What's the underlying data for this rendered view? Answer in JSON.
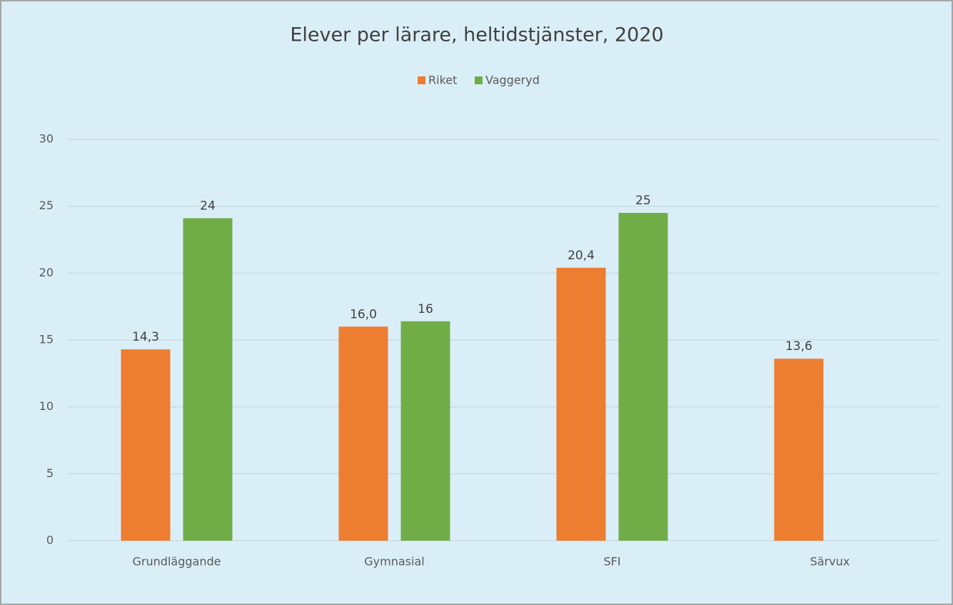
{
  "chart_data": {
    "type": "bar",
    "title": "Elever per lärare, heltidstjänster, 2020",
    "categories": [
      "Grundläggande",
      "Gymnasial",
      "SFI",
      "Särvux"
    ],
    "series": [
      {
        "name": "Riket",
        "color": "#ed7d31",
        "values": [
          14.3,
          16.0,
          20.4,
          13.6
        ],
        "value_labels": [
          "14,3",
          "16,0",
          "20,4",
          "13,6"
        ]
      },
      {
        "name": "Vaggeryd",
        "color": "#70ad47",
        "values": [
          24.1,
          16.4,
          24.5,
          null
        ],
        "value_labels": [
          "24",
          "16",
          "25",
          null
        ]
      }
    ],
    "ylim": [
      0,
      30
    ],
    "yticks": [
      0,
      5,
      10,
      15,
      20,
      25,
      30
    ],
    "grid": true,
    "legend": "top"
  }
}
